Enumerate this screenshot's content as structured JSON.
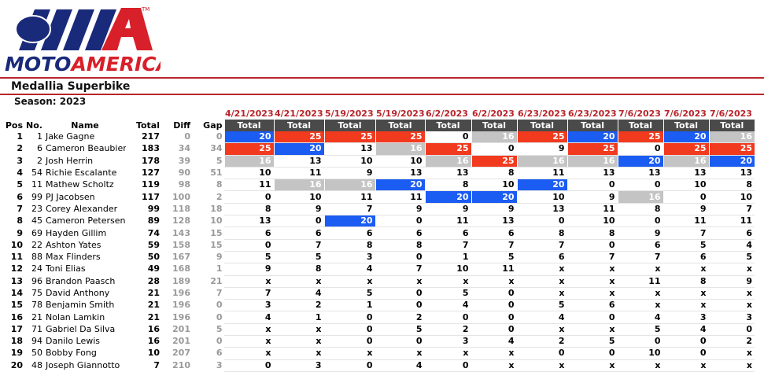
{
  "logo": {
    "parts": [
      "MOTO",
      "AMERICA"
    ],
    "mark": "TM"
  },
  "header": {
    "title": "Medallia Superbike",
    "season": "Season: 2023"
  },
  "table": {
    "columns": [
      "Pos",
      "No.",
      "Name",
      "Total",
      "Diff",
      "Gap"
    ],
    "race_columns": [
      {
        "date": "4/21/2023",
        "label": "Total"
      },
      {
        "date": "4/21/2023",
        "label": "Total"
      },
      {
        "date": "5/19/2023",
        "label": "Total"
      },
      {
        "date": "5/19/2023",
        "label": "Total"
      },
      {
        "date": "6/2/2023",
        "label": "Total"
      },
      {
        "date": "6/2/2023",
        "label": "Total"
      },
      {
        "date": "6/23/2023",
        "label": "Total"
      },
      {
        "date": "6/23/2023",
        "label": "Total"
      },
      {
        "date": "7/6/2023",
        "label": "Total"
      },
      {
        "date": "7/6/2023",
        "label": "Total"
      },
      {
        "date": "7/6/2023",
        "label": "Total"
      }
    ],
    "rows": [
      [
        1,
        1,
        "Jake Gagne",
        217,
        0,
        0,
        20,
        25,
        25,
        25,
        0,
        16,
        25,
        20,
        25,
        20,
        16
      ],
      [
        2,
        6,
        "Cameron Beaubier",
        183,
        34,
        34,
        25,
        20,
        13,
        16,
        25,
        0,
        9,
        25,
        0,
        25,
        25
      ],
      [
        3,
        2,
        "Josh Herrin",
        178,
        39,
        5,
        16,
        13,
        10,
        10,
        16,
        25,
        16,
        16,
        20,
        16,
        20
      ],
      [
        4,
        54,
        "Richie Escalante",
        127,
        90,
        51,
        10,
        11,
        9,
        13,
        13,
        8,
        11,
        13,
        13,
        13,
        13
      ],
      [
        5,
        11,
        "Mathew Scholtz",
        119,
        98,
        8,
        11,
        16,
        16,
        20,
        8,
        10,
        20,
        0,
        0,
        10,
        8
      ],
      [
        6,
        99,
        "PJ Jacobsen",
        117,
        100,
        2,
        0,
        10,
        11,
        11,
        20,
        20,
        10,
        9,
        16,
        0,
        10
      ],
      [
        7,
        23,
        "Corey Alexander",
        99,
        118,
        18,
        8,
        9,
        7,
        9,
        9,
        9,
        13,
        11,
        8,
        9,
        7
      ],
      [
        8,
        45,
        "Cameron Petersen",
        89,
        128,
        10,
        13,
        0,
        20,
        0,
        11,
        13,
        0,
        10,
        0,
        11,
        11
      ],
      [
        9,
        69,
        "Hayden Gillim",
        74,
        143,
        15,
        6,
        6,
        6,
        6,
        6,
        6,
        8,
        8,
        9,
        7,
        6
      ],
      [
        10,
        22,
        "Ashton Yates",
        59,
        158,
        15,
        0,
        7,
        8,
        8,
        7,
        7,
        7,
        0,
        6,
        5,
        4
      ],
      [
        11,
        88,
        "Max Flinders",
        50,
        167,
        9,
        5,
        5,
        3,
        0,
        1,
        5,
        6,
        7,
        7,
        6,
        5
      ],
      [
        12,
        24,
        "Toni Elias",
        49,
        168,
        1,
        9,
        8,
        4,
        7,
        10,
        11,
        "x",
        "x",
        "x",
        "x",
        "x"
      ],
      [
        13,
        96,
        "Brandon Paasch",
        28,
        189,
        21,
        "x",
        "x",
        "x",
        "x",
        "x",
        "x",
        "x",
        "x",
        11,
        8,
        9
      ],
      [
        14,
        75,
        "David Anthony",
        21,
        196,
        7,
        7,
        4,
        5,
        0,
        5,
        0,
        "x",
        "x",
        "x",
        "x",
        "x"
      ],
      [
        15,
        78,
        "Benjamin Smith",
        21,
        196,
        0,
        3,
        2,
        1,
        0,
        4,
        0,
        5,
        6,
        "x",
        "x",
        "x"
      ],
      [
        16,
        21,
        "Nolan Lamkin",
        21,
        196,
        0,
        4,
        1,
        0,
        2,
        0,
        0,
        4,
        0,
        4,
        3,
        3
      ],
      [
        17,
        71,
        "Gabriel Da Silva",
        16,
        201,
        5,
        "x",
        "x",
        0,
        5,
        2,
        0,
        "x",
        "x",
        5,
        4,
        0
      ],
      [
        18,
        94,
        "Danilo Lewis",
        16,
        201,
        0,
        "x",
        "x",
        0,
        0,
        3,
        4,
        2,
        5,
        0,
        0,
        2
      ],
      [
        19,
        50,
        "Bobby Fong",
        10,
        207,
        6,
        "x",
        "x",
        "x",
        "x",
        "x",
        "x",
        0,
        0,
        10,
        0,
        "x"
      ],
      [
        20,
        48,
        "Joseph Giannotto",
        7,
        210,
        3,
        0,
        3,
        0,
        4,
        0,
        "x",
        "x",
        "x",
        "x",
        "x",
        "x"
      ]
    ]
  }
}
